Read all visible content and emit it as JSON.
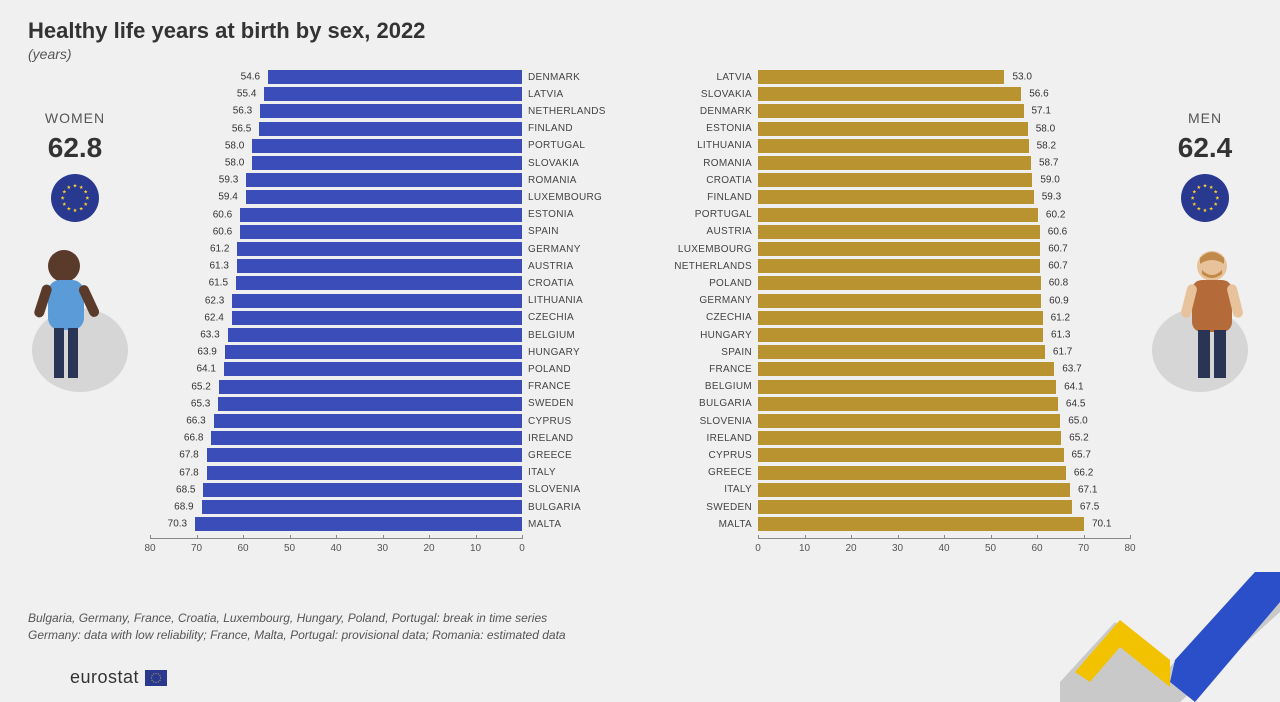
{
  "title": "Healthy life years at birth by sex, 2022",
  "subtitle": "(years)",
  "footnote_line1": "Bulgaria, Germany, France, Croatia, Luxembourg, Hungary, Poland, Portugal: break in time series",
  "footnote_line2": "Germany: data with low reliability; France, Malta, Portugal: provisional data; Romania: estimated data",
  "logo_text": "eurostat",
  "axis": {
    "min": 0,
    "max": 80,
    "step": 10
  },
  "colors": {
    "women_bar": "#3b4db8",
    "men_bar": "#b8932f",
    "background": "#f0f0f0",
    "eu_circle": "#2a3990",
    "star": "#f8d12e",
    "swoosh_yellow": "#f2c200",
    "swoosh_blue": "#2a4fc8",
    "swoosh_grey": "#c9c9c9"
  },
  "women": {
    "label": "WOMEN",
    "eu_value": "62.8",
    "rows": [
      {
        "country": "DENMARK",
        "value": 54.6
      },
      {
        "country": "LATVIA",
        "value": 55.4
      },
      {
        "country": "NETHERLANDS",
        "value": 56.3
      },
      {
        "country": "FINLAND",
        "value": 56.5
      },
      {
        "country": "PORTUGAL",
        "value": 58.0
      },
      {
        "country": "SLOVAKIA",
        "value": 58.0
      },
      {
        "country": "ROMANIA",
        "value": 59.3
      },
      {
        "country": "LUXEMBOURG",
        "value": 59.4
      },
      {
        "country": "ESTONIA",
        "value": 60.6
      },
      {
        "country": "SPAIN",
        "value": 60.6
      },
      {
        "country": "GERMANY",
        "value": 61.2
      },
      {
        "country": "AUSTRIA",
        "value": 61.3
      },
      {
        "country": "CROATIA",
        "value": 61.5
      },
      {
        "country": "LITHUANIA",
        "value": 62.3
      },
      {
        "country": "CZECHIA",
        "value": 62.4
      },
      {
        "country": "BELGIUM",
        "value": 63.3
      },
      {
        "country": "HUNGARY",
        "value": 63.9
      },
      {
        "country": "POLAND",
        "value": 64.1
      },
      {
        "country": "FRANCE",
        "value": 65.2
      },
      {
        "country": "SWEDEN",
        "value": 65.3
      },
      {
        "country": "CYPRUS",
        "value": 66.3
      },
      {
        "country": "IRELAND",
        "value": 66.8
      },
      {
        "country": "GREECE",
        "value": 67.8
      },
      {
        "country": "ITALY",
        "value": 67.8
      },
      {
        "country": "SLOVENIA",
        "value": 68.5
      },
      {
        "country": "BULGARIA",
        "value": 68.9
      },
      {
        "country": "MALTA",
        "value": 70.3
      }
    ]
  },
  "men": {
    "label": "MEN",
    "eu_value": "62.4",
    "rows": [
      {
        "country": "LATVIA",
        "value": 53.0
      },
      {
        "country": "SLOVAKIA",
        "value": 56.6
      },
      {
        "country": "DENMARK",
        "value": 57.1
      },
      {
        "country": "ESTONIA",
        "value": 58.0
      },
      {
        "country": "LITHUANIA",
        "value": 58.2
      },
      {
        "country": "ROMANIA",
        "value": 58.7
      },
      {
        "country": "CROATIA",
        "value": 59.0
      },
      {
        "country": "FINLAND",
        "value": 59.3
      },
      {
        "country": "PORTUGAL",
        "value": 60.2
      },
      {
        "country": "AUSTRIA",
        "value": 60.6
      },
      {
        "country": "LUXEMBOURG",
        "value": 60.7
      },
      {
        "country": "NETHERLANDS",
        "value": 60.7
      },
      {
        "country": "POLAND",
        "value": 60.8
      },
      {
        "country": "GERMANY",
        "value": 60.9
      },
      {
        "country": "CZECHIA",
        "value": 61.2
      },
      {
        "country": "HUNGARY",
        "value": 61.3
      },
      {
        "country": "SPAIN",
        "value": 61.7
      },
      {
        "country": "FRANCE",
        "value": 63.7
      },
      {
        "country": "BELGIUM",
        "value": 64.1
      },
      {
        "country": "BULGARIA",
        "value": 64.5
      },
      {
        "country": "SLOVENIA",
        "value": 65.0
      },
      {
        "country": "IRELAND",
        "value": 65.2
      },
      {
        "country": "CYPRUS",
        "value": 65.7
      },
      {
        "country": "GREECE",
        "value": 66.2
      },
      {
        "country": "ITALY",
        "value": 67.1
      },
      {
        "country": "SWEDEN",
        "value": 67.5
      },
      {
        "country": "MALTA",
        "value": 70.1
      }
    ]
  }
}
